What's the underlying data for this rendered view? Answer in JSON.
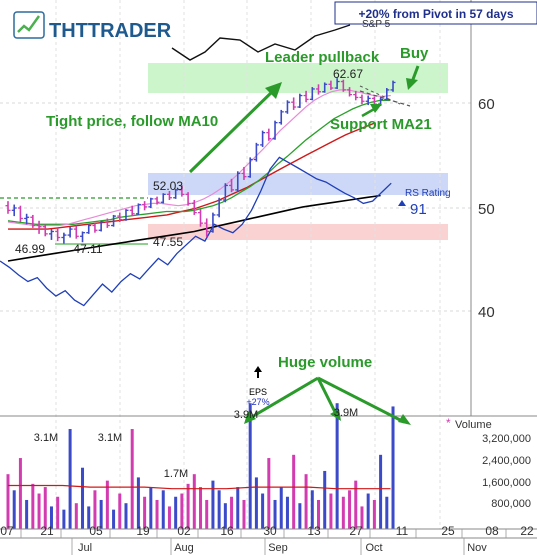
{
  "header": {
    "logo_text": "THTTRADER",
    "pivot_banner": "+20% from Pivot in 57 days",
    "index_label": "S&P 5"
  },
  "colors": {
    "price_up": "#3a4ac8",
    "price_down": "#d23cb0",
    "ma10": "#e88ad8",
    "ma21": "#2aa12a",
    "ma50": "#d01818",
    "ma200": "#000000",
    "rs_line": "#1f3fb8",
    "annotation_green": "#2a9a2a",
    "band_green": "#ccf5cc",
    "band_blue": "#cdd8f8",
    "band_red": "#fbd2d2",
    "volume_up": "#3a4ac8",
    "volume_down": "#d23cb0"
  },
  "annotations": {
    "tight_price": "Tight price, follow MA10",
    "leader_pullback": "Leader pullback",
    "buy": "Buy",
    "support_ma21": "Support MA21",
    "huge_volume": "Huge volume",
    "eps": "EPS",
    "eps_change": "+27%",
    "rs_rating_label": "RS Rating",
    "rs_rating_value": "91"
  },
  "price_labels": [
    "46.99",
    "47.11",
    "47.55",
    "52.03",
    "62.67"
  ],
  "volume_labels": [
    "3.1M",
    "3.1M",
    "1.7M",
    "3.9M",
    "3.9M"
  ],
  "chart_data": {
    "type": "candlestick",
    "price_axis": {
      "ticks": [
        "60",
        "50",
        "40"
      ],
      "range": [
        37,
        67
      ],
      "scale": "log"
    },
    "volume_axis": {
      "title": "Volume",
      "ticks": [
        "3,200,000",
        "2,400,000",
        "1,600,000",
        "800,000"
      ],
      "range": [
        0,
        4000000
      ]
    },
    "x_ticks": [
      "07",
      "21",
      "05",
      "19",
      "02",
      "16",
      "30",
      "13",
      "27",
      "11",
      "25",
      "08",
      "22"
    ],
    "months": [
      "Jul",
      "Aug",
      "Sep",
      "Oct",
      "Nov"
    ],
    "ohlc": [
      [
        50.2,
        50.6,
        49.5,
        49.8
      ],
      [
        49.8,
        50.3,
        49.3,
        50.0
      ],
      [
        50.0,
        50.2,
        48.8,
        49.1
      ],
      [
        49.1,
        49.5,
        48.6,
        49.2
      ],
      [
        49.2,
        49.4,
        48.3,
        48.5
      ],
      [
        48.5,
        48.9,
        47.8,
        48.4
      ],
      [
        48.4,
        48.6,
        47.6,
        47.8
      ],
      [
        47.8,
        48.2,
        47.3,
        48.0
      ],
      [
        48.0,
        48.3,
        47.2,
        47.5
      ],
      [
        47.5,
        47.9,
        46.99,
        47.7
      ],
      [
        47.7,
        48.4,
        47.5,
        48.2
      ],
      [
        48.2,
        48.5,
        47.4,
        47.6
      ],
      [
        47.6,
        48.0,
        47.11,
        47.9
      ],
      [
        47.9,
        48.6,
        47.8,
        48.5
      ],
      [
        48.5,
        48.7,
        47.9,
        48.1
      ],
      [
        48.1,
        48.9,
        48.0,
        48.8
      ],
      [
        48.8,
        49.1,
        48.3,
        48.5
      ],
      [
        48.5,
        49.4,
        48.4,
        49.3
      ],
      [
        49.3,
        49.6,
        48.8,
        49.0
      ],
      [
        49.0,
        49.9,
        48.9,
        49.8
      ],
      [
        49.8,
        50.2,
        49.3,
        49.5
      ],
      [
        49.5,
        50.4,
        49.4,
        50.3
      ],
      [
        50.3,
        50.6,
        49.8,
        50.1
      ],
      [
        50.1,
        50.9,
        50.0,
        50.8
      ],
      [
        50.8,
        51.0,
        50.3,
        50.5
      ],
      [
        50.5,
        51.3,
        50.4,
        51.2
      ],
      [
        51.2,
        51.5,
        50.7,
        50.9
      ],
      [
        50.9,
        51.7,
        50.8,
        51.6
      ],
      [
        51.6,
        52.03,
        51.0,
        51.2
      ],
      [
        51.2,
        51.4,
        50.2,
        50.4
      ],
      [
        50.4,
        50.7,
        49.4,
        49.6
      ],
      [
        49.6,
        49.9,
        48.4,
        48.7
      ],
      [
        48.7,
        49.1,
        47.55,
        48.0
      ],
      [
        48.0,
        49.6,
        47.9,
        49.4
      ],
      [
        49.4,
        50.9,
        49.2,
        50.7
      ],
      [
        50.7,
        52.2,
        50.5,
        52.0
      ],
      [
        52.0,
        52.6,
        51.4,
        51.6
      ],
      [
        51.6,
        53.3,
        51.5,
        53.1
      ],
      [
        53.1,
        53.7,
        52.5,
        52.8
      ],
      [
        52.8,
        54.6,
        52.7,
        54.4
      ],
      [
        54.4,
        56.0,
        54.2,
        55.8
      ],
      [
        55.8,
        57.2,
        55.6,
        57.0
      ],
      [
        57.0,
        57.4,
        56.2,
        56.4
      ],
      [
        56.4,
        58.2,
        56.3,
        58.0
      ],
      [
        58.0,
        59.3,
        57.8,
        59.1
      ],
      [
        59.1,
        60.3,
        58.9,
        60.1
      ],
      [
        60.1,
        60.6,
        59.3,
        59.6
      ],
      [
        59.6,
        61.0,
        59.5,
        60.8
      ],
      [
        60.8,
        61.3,
        60.1,
        60.4
      ],
      [
        60.4,
        61.7,
        60.3,
        61.5
      ],
      [
        61.5,
        62.0,
        60.9,
        61.2
      ],
      [
        61.2,
        62.2,
        61.1,
        62.0
      ],
      [
        62.0,
        62.4,
        61.4,
        61.6
      ],
      [
        61.6,
        62.67,
        61.5,
        62.3
      ],
      [
        62.3,
        62.5,
        61.2,
        61.4
      ],
      [
        61.4,
        61.7,
        60.7,
        60.9
      ],
      [
        60.9,
        61.3,
        60.3,
        60.6
      ],
      [
        60.6,
        60.9,
        59.9,
        60.2
      ],
      [
        60.2,
        60.8,
        59.8,
        60.5
      ],
      [
        60.5,
        60.7,
        59.6,
        59.9
      ],
      [
        59.9,
        60.6,
        59.7,
        60.4
      ],
      [
        60.4,
        61.6,
        60.3,
        61.4
      ],
      [
        61.4,
        62.4,
        61.2,
        62.2
      ]
    ],
    "volume": [
      1700000,
      1200000,
      2200000,
      900000,
      1400000,
      1100000,
      1300000,
      700000,
      1000000,
      600000,
      3100000,
      800000,
      1900000,
      700000,
      1200000,
      900000,
      1500000,
      600000,
      1100000,
      800000,
      3100000,
      1600000,
      1000000,
      1300000,
      900000,
      1200000,
      700000,
      1000000,
      1100000,
      1400000,
      1700000,
      1300000,
      900000,
      1500000,
      1200000,
      800000,
      1000000,
      1300000,
      900000,
      3900000,
      1600000,
      1100000,
      2200000,
      900000,
      1300000,
      1000000,
      2300000,
      800000,
      1700000,
      1200000,
      900000,
      1800000,
      1100000,
      3900000,
      1000000,
      1200000,
      1500000,
      700000,
      1100000,
      900000,
      2300000,
      1000000,
      3800000
    ],
    "ma10": [
      48.8,
      48.7,
      48.6,
      48.5,
      48.5,
      48.5,
      48.5,
      48.6,
      48.8,
      49.0,
      49.2,
      49.4,
      49.6,
      49.8,
      50.0,
      50.2,
      50.3,
      50.4,
      50.4,
      50.3,
      50.2,
      50.3,
      50.5,
      50.8,
      51.2,
      51.7,
      52.3,
      53.0,
      53.8,
      54.6,
      55.4,
      56.3,
      57.2,
      58.0,
      58.8,
      59.6,
      60.3,
      60.8,
      61.2,
      61.4,
      61.4,
      61.2,
      61.0,
      60.8,
      60.7,
      60.8
    ],
    "ma21": [
      48.9,
      48.8,
      48.7,
      48.6,
      48.6,
      48.6,
      48.6,
      48.6,
      48.7,
      48.8,
      48.9,
      49.0,
      49.2,
      49.3,
      49.4,
      49.5,
      49.6,
      49.7,
      49.7,
      49.7,
      49.8,
      50.0,
      50.2,
      50.5,
      50.9,
      51.4,
      51.9,
      52.5,
      53.2,
      54.0,
      54.7,
      55.5,
      56.3,
      57.0,
      57.7,
      58.4,
      58.9,
      59.4,
      59.8,
      60.1,
      60.3,
      60.3
    ],
    "ma50": [
      48.2,
      48.2,
      48.2,
      48.2,
      48.2,
      48.3,
      48.4,
      48.5,
      48.6,
      48.7,
      48.8,
      48.9,
      49.0,
      49.1,
      49.2,
      49.3,
      49.4,
      49.6,
      49.8,
      50.0,
      50.3,
      50.6,
      51.0,
      51.4,
      51.8,
      52.3,
      52.8,
      53.3,
      53.8,
      54.3,
      54.8,
      55.3,
      55.8,
      56.3,
      56.8,
      57.2,
      57.6,
      58.0
    ],
    "ma200": [
      45.6,
      45.8,
      46.0,
      46.2,
      46.4,
      46.6,
      46.8,
      47.0,
      47.2,
      47.4,
      47.6,
      47.8,
      48.0,
      48.3,
      48.6,
      48.9,
      49.2,
      49.5,
      49.8,
      50.1,
      50.3,
      50.5,
      50.7,
      50.9,
      51.1
    ],
    "rs_line": [
      45.6,
      45.1,
      44.5,
      44.0,
      44.3,
      43.5,
      42.9,
      43.3,
      42.6,
      42.2,
      43.0,
      43.8,
      43.2,
      44.0,
      44.6,
      44.2,
      45.0,
      45.8,
      45.3,
      46.2,
      46.9,
      47.6,
      47.2,
      48.6,
      48.2,
      47.9,
      48.6,
      49.8,
      51.5,
      53.5,
      54.6,
      54.1,
      53.6,
      53.1,
      52.6,
      52.3,
      51.8,
      51.3,
      50.9,
      50.4,
      50.6,
      51.4,
      52.2
    ],
    "volume_avg": [
      1350000,
      1350000,
      1350000,
      1300000,
      1300000,
      1300000,
      1250000,
      1250000,
      1250000,
      1300000,
      1300000,
      1300000,
      1250000,
      1250000,
      1250000
    ]
  }
}
